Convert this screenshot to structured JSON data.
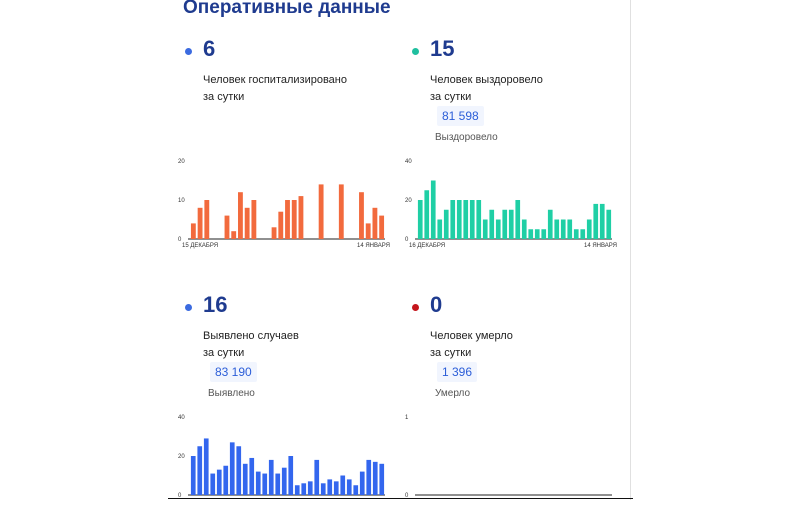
{
  "header": {
    "title": "Оперативные данные"
  },
  "panels": [
    {
      "id": "hospitalized",
      "number": "6",
      "caption_line1": "Человек госпитализировано",
      "caption_line2": "за сутки",
      "dot_color": "#3b6be0",
      "bar_color": "#f26a3d",
      "chart_data": {
        "type": "bar",
        "ylim": [
          0,
          20
        ],
        "yticks": [
          "20",
          "10",
          "0"
        ],
        "x_start_label": "15 ДЕКАБРЯ",
        "x_end_label": "14 ЯНВАРЯ",
        "values": [
          4,
          8,
          10,
          0,
          0,
          6,
          2,
          12,
          8,
          10,
          0,
          0,
          3,
          7,
          10,
          10,
          11,
          0,
          0,
          14,
          0,
          0,
          14,
          0,
          0,
          12,
          4,
          8,
          6
        ]
      }
    },
    {
      "id": "recovered",
      "number": "15",
      "caption_line1": "Человек выздоровело",
      "caption_line2": "за сутки",
      "total": "81 598",
      "total_label": "Выздоровело",
      "dot_color": "#1fbf9f",
      "bar_color": "#1fcfa5",
      "chart_data": {
        "type": "bar",
        "ylim": [
          0,
          40
        ],
        "yticks": [
          "40",
          "20",
          "0"
        ],
        "x_start_label": "16 ДЕКАБРЯ",
        "x_end_label": "14 ЯНВАРЯ",
        "values": [
          20,
          25,
          30,
          10,
          15,
          20,
          20,
          20,
          20,
          20,
          10,
          15,
          10,
          15,
          15,
          20,
          10,
          5,
          5,
          5,
          15,
          10,
          10,
          10,
          5,
          5,
          10,
          18,
          18,
          15
        ]
      }
    },
    {
      "id": "detected",
      "number": "16",
      "caption_line1": "Выявлено случаев",
      "caption_line2": "за сутки",
      "total": "83 190",
      "total_label": "Выявлено",
      "dot_color": "#3b6be0",
      "bar_color": "#3366ee",
      "chart_data": {
        "type": "bar",
        "ylim": [
          0,
          40
        ],
        "yticks": [
          "40",
          "20",
          "0"
        ],
        "values": [
          20,
          25,
          29,
          11,
          13,
          15,
          27,
          25,
          16,
          19,
          12,
          11,
          18,
          11,
          14,
          20,
          5,
          6,
          7,
          18,
          6,
          8,
          7,
          10,
          8,
          5,
          12,
          18,
          17,
          16
        ]
      }
    },
    {
      "id": "deaths",
      "number": "0",
      "caption_line1": "Человек умерло",
      "caption_line2": "за сутки",
      "total": "1 396",
      "total_label": "Умерло",
      "dot_color": "#c4161c",
      "bar_color": "#c4161c",
      "chart_data": {
        "type": "bar",
        "ylim": [
          0,
          1
        ],
        "yticks": [
          "1",
          "0"
        ],
        "values": []
      }
    }
  ]
}
